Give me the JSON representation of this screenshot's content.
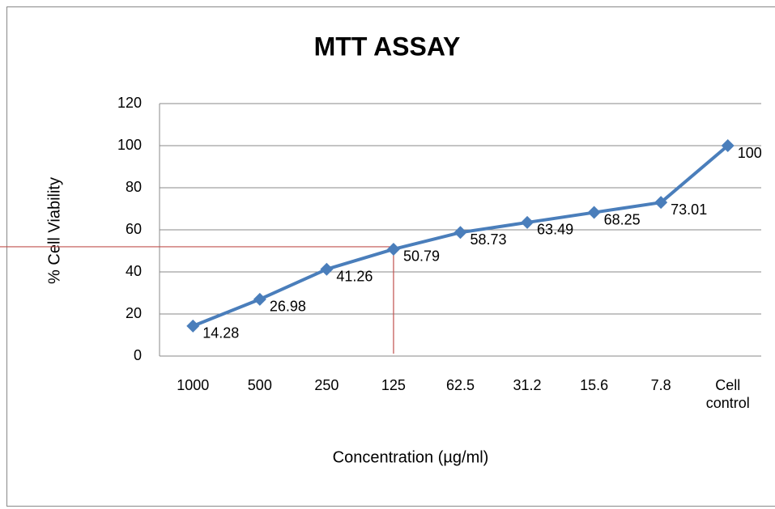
{
  "chart_data": {
    "type": "line",
    "title": "MTT ASSAY",
    "x_label": "Concentration (µg/ml)",
    "y_label": "% Cell Viability",
    "categories": [
      "1000",
      "500",
      "250",
      "125",
      "62.5",
      "31.2",
      "15.6",
      "7.8",
      "Cell control"
    ],
    "values": [
      14.28,
      26.98,
      41.26,
      50.79,
      58.73,
      63.49,
      68.25,
      73.01,
      100
    ],
    "color": "#4a7ebb",
    "ylim": [
      0,
      120
    ],
    "yticks": [
      0,
      20,
      40,
      60,
      80,
      100,
      120
    ],
    "grid": true
  }
}
